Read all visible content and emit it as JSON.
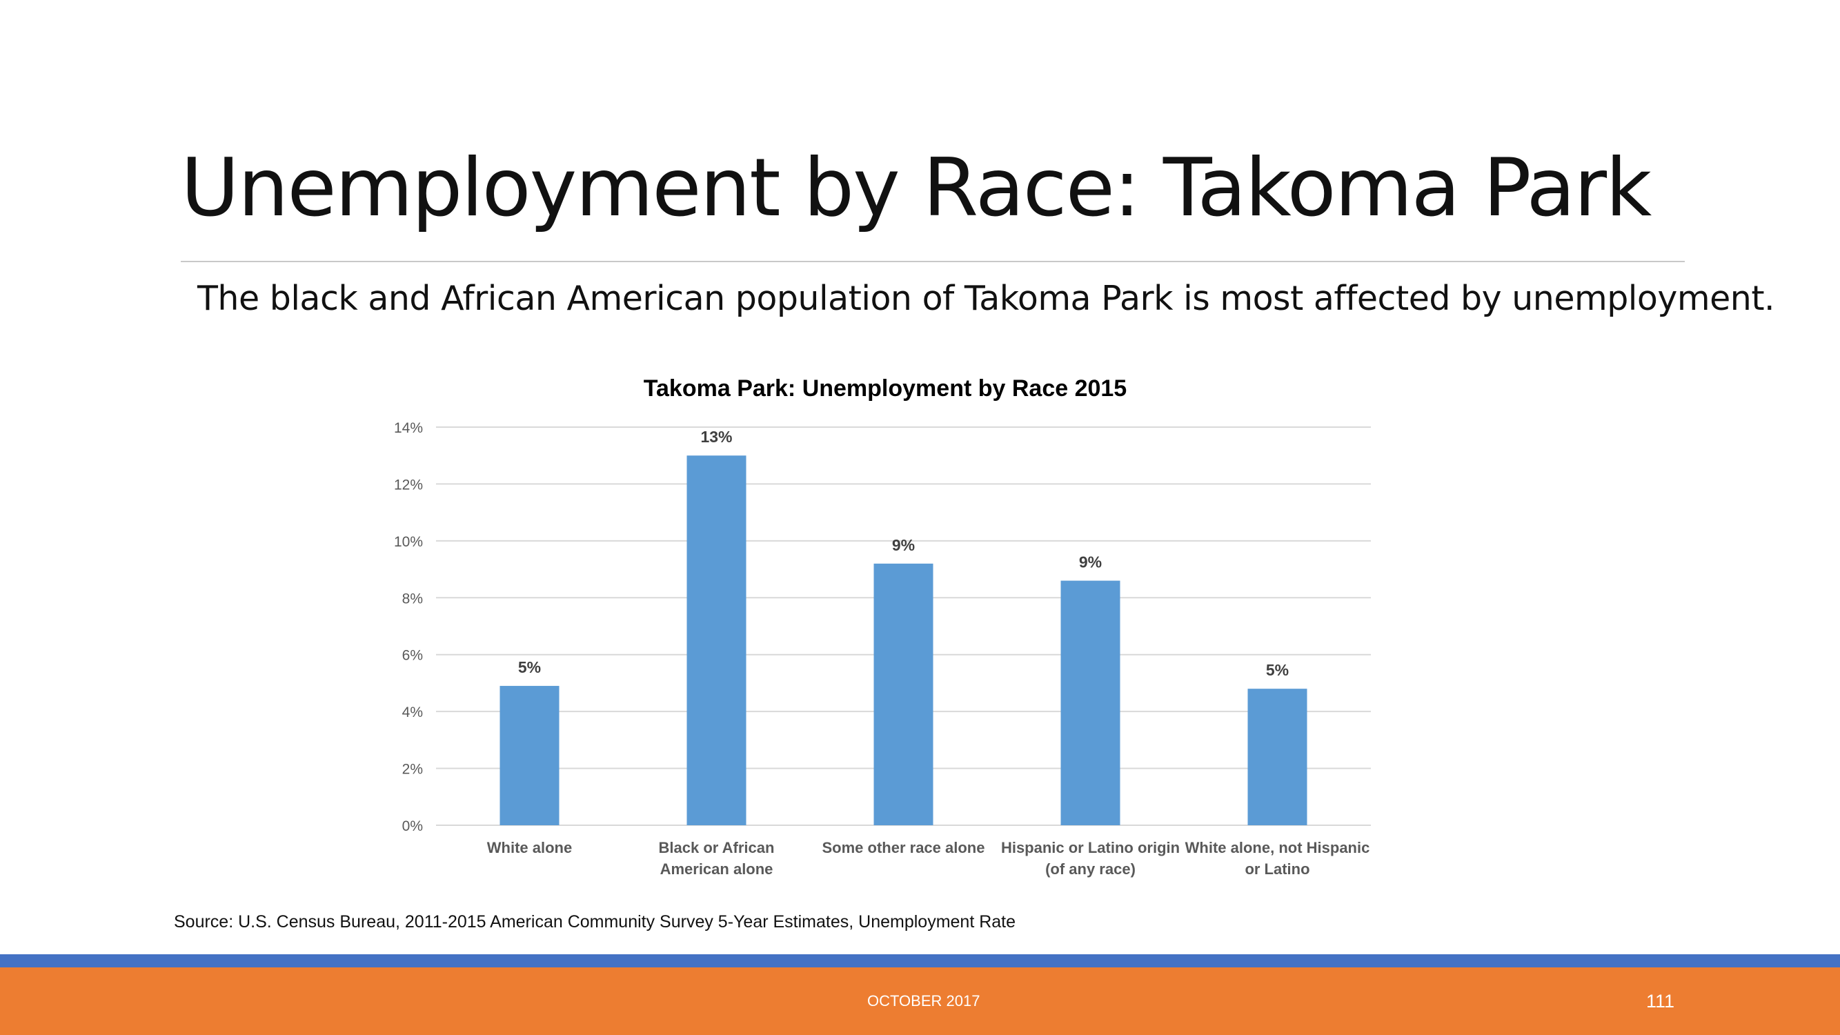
{
  "slide": {
    "title": "Unemployment by Race: Takoma Park",
    "subtitle": "The black and African American population of Takoma Park is most affected by unemployment.",
    "source": "Source: U.S. Census Bureau, 2011-2015 American Community Survey 5-Year Estimates, Unemployment Rate"
  },
  "footer": {
    "date": "OCTOBER 2017",
    "page_number": "111"
  },
  "colors": {
    "bar": "#5b9bd5",
    "footer_blue": "#4472c4",
    "footer_orange": "#ed7d31",
    "gridline": "#d9d9d9",
    "axis_text": "#595959"
  },
  "chart_data": {
    "type": "bar",
    "title": "Takoma Park: Unemployment by Race 2015",
    "categories": [
      [
        "White alone"
      ],
      [
        "Black or African",
        "American alone"
      ],
      [
        "Some other race alone"
      ],
      [
        "Hispanic or Latino origin",
        "(of any race)"
      ],
      [
        "White alone, not Hispanic",
        "or Latino"
      ]
    ],
    "values": [
      0.049,
      0.13,
      0.092,
      0.086,
      0.048
    ],
    "data_labels": [
      "5%",
      "13%",
      "9%",
      "9%",
      "5%"
    ],
    "ylim": [
      0,
      0.14
    ],
    "yticks": [
      0,
      0.02,
      0.04,
      0.06,
      0.08,
      0.1,
      0.12,
      0.14
    ],
    "ytick_labels": [
      "0%",
      "2%",
      "4%",
      "6%",
      "8%",
      "10%",
      "12%",
      "14%"
    ],
    "xlabel": "",
    "ylabel": "",
    "grid": true,
    "legend": "none"
  }
}
